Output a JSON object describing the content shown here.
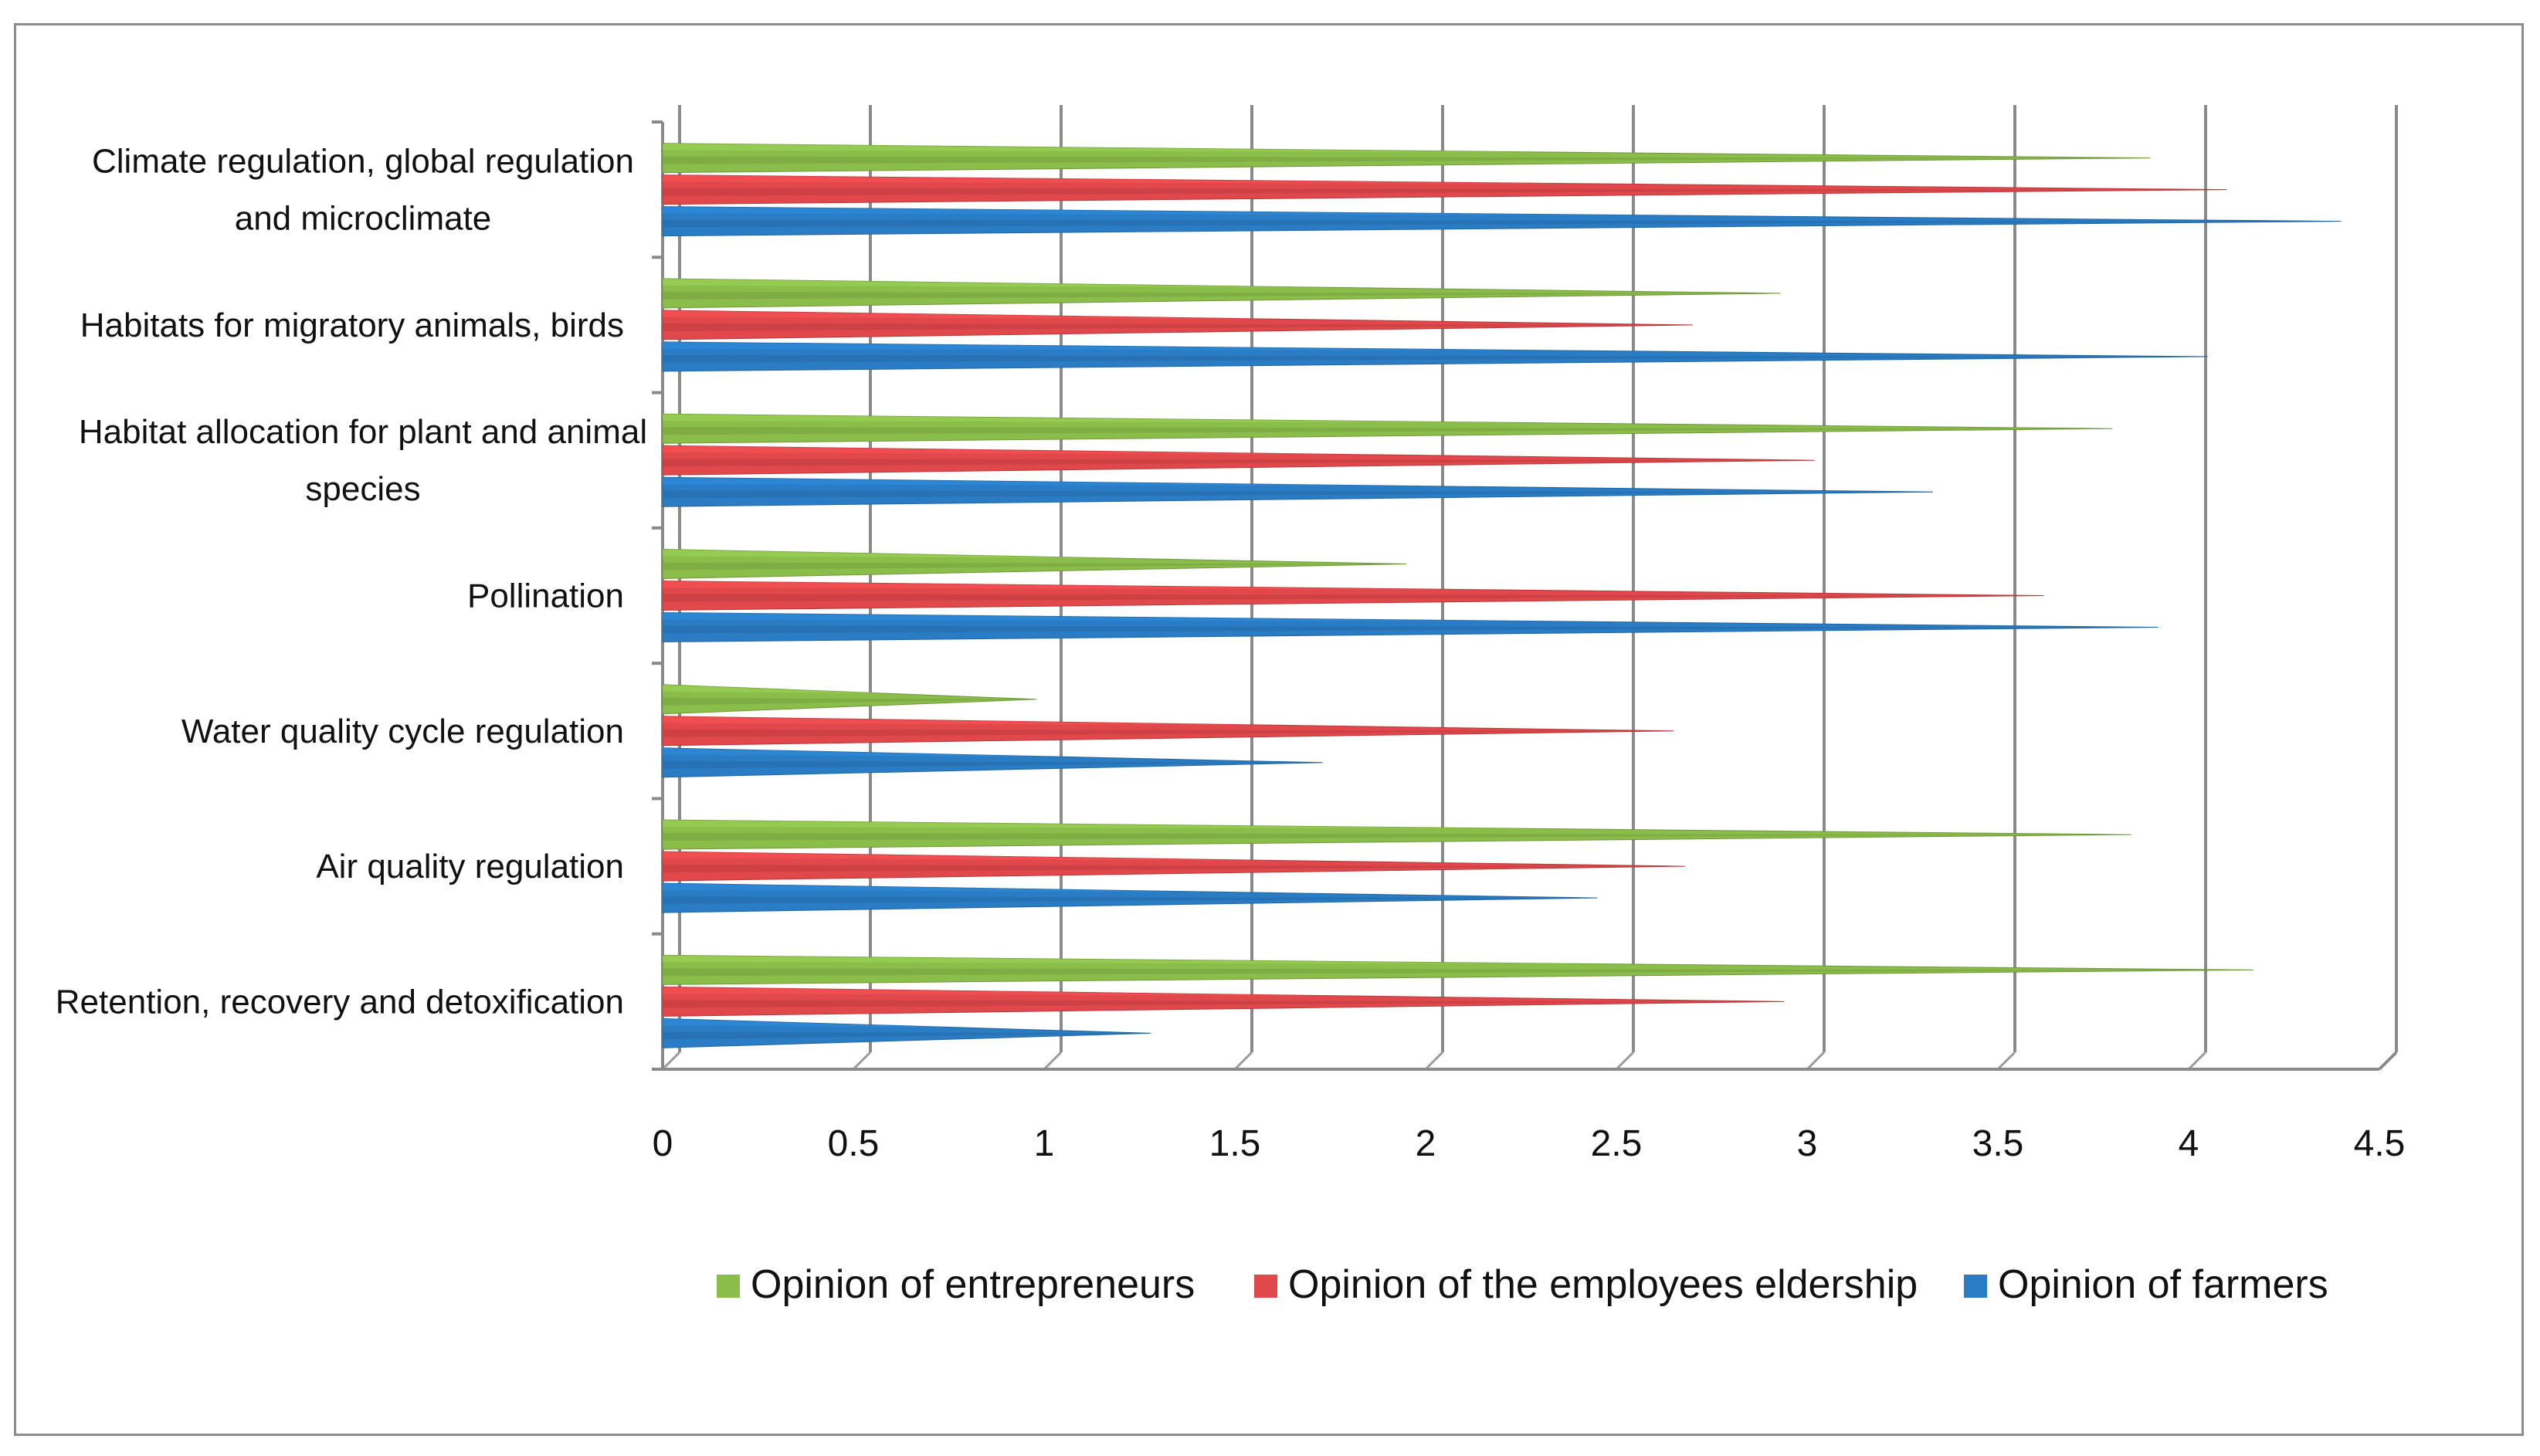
{
  "chart_data": {
    "type": "bar",
    "orientation": "horizontal",
    "style": "3d-cone",
    "title": "",
    "xlabel": "",
    "ylabel": "",
    "xlim": [
      0,
      4.5
    ],
    "xticks": [
      "0",
      "0.5",
      "1",
      "1.5",
      "2",
      "2.5",
      "3",
      "3.5",
      "4",
      "4.5"
    ],
    "grid": true,
    "legend_position": "bottom",
    "categories": [
      [
        "Climate regulation, global regulation",
        "and microclimate"
      ],
      [
        "Habitats for migratory animals, birds"
      ],
      [
        "Habitat allocation for plant and animal",
        "species"
      ],
      [
        "Pollination"
      ],
      [
        "Water quality cycle regulation"
      ],
      [
        "Air quality regulation"
      ],
      [
        "Retention, recovery and detoxification"
      ]
    ],
    "series": [
      {
        "name": "Opinion of entrepreneurs",
        "color": "#8bbd4b",
        "values": [
          3.9,
          2.93,
          3.8,
          1.95,
          0.98,
          3.85,
          4.17
        ]
      },
      {
        "name": "Opinion of the employees eldership",
        "color": "#e0484b",
        "values": [
          4.1,
          2.7,
          3.02,
          3.62,
          2.65,
          2.68,
          2.94
        ]
      },
      {
        "name": "Opinion of farmers",
        "color": "#2a7dc4",
        "values": [
          4.4,
          4.05,
          3.33,
          3.92,
          1.73,
          2.45,
          1.28
        ]
      }
    ]
  }
}
